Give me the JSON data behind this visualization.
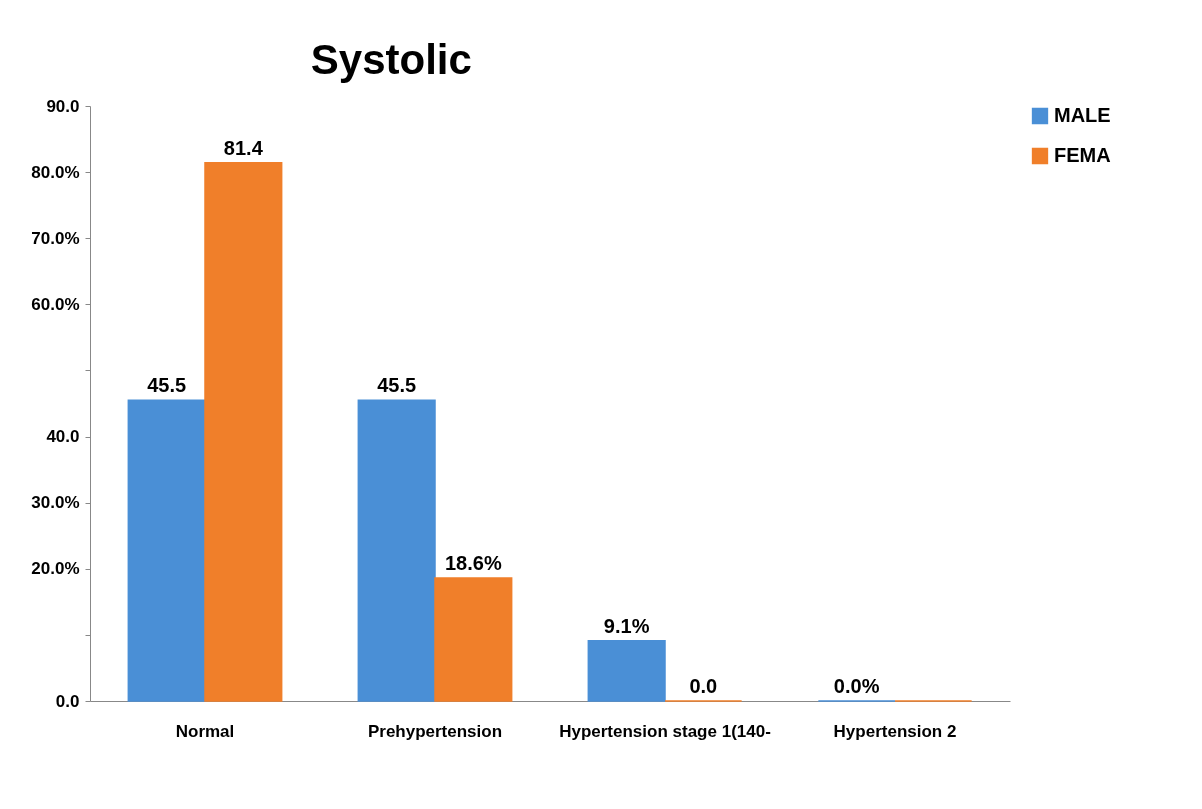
{
  "chart_data": {
    "type": "bar",
    "title": "Systolic",
    "categories": [
      "Normal",
      "Prehypertension",
      "Hypertension stage 1(140-",
      "Hypertension 2"
    ],
    "series": [
      {
        "name": "MALE",
        "color": "#4a8fd6",
        "values": [
          45.5,
          45.5,
          9.1,
          0.0
        ],
        "value_labels": [
          "45.5",
          "45.5",
          "9.1%",
          "0.0%"
        ]
      },
      {
        "name": "FEMA",
        "color": "#f07f2a",
        "values": [
          81.4,
          18.6,
          0.0,
          0.0
        ],
        "value_labels": [
          "81.4",
          "18.6%",
          "0.0",
          null
        ]
      }
    ],
    "ylim": [
      0,
      90
    ],
    "yticks": [
      {
        "value": 0,
        "label": "0.0"
      },
      {
        "value": 10,
        "label": null
      },
      {
        "value": 20,
        "label": "20.0%"
      },
      {
        "value": 30,
        "label": "30.0%"
      },
      {
        "value": 40,
        "label": "40.0"
      },
      {
        "value": 50,
        "label": null
      },
      {
        "value": 60,
        "label": "60.0%"
      },
      {
        "value": 70,
        "label": "70.0%"
      },
      {
        "value": 80,
        "label": "80.0%"
      },
      {
        "value": 90,
        "label": "90.0"
      }
    ],
    "grid": false,
    "legend": "right"
  }
}
